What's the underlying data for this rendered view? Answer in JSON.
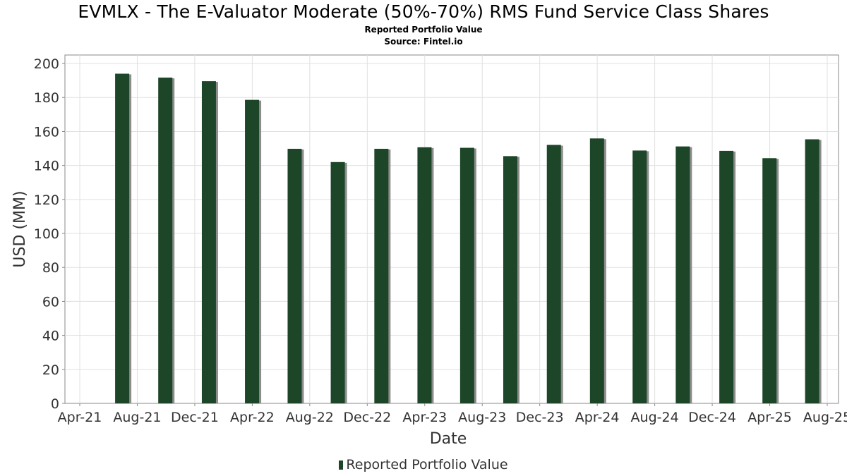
{
  "header": {
    "title": "EVMLX - The E-Valuator Moderate (50%-70%) RMS Fund Service Class Shares",
    "subtitle": "Reported Portfolio Value",
    "source": "Source: Fintel.io"
  },
  "legend": {
    "label": "Reported Portfolio Value"
  },
  "colors": {
    "bar": "#1d4628",
    "bar_shadow": "#8c8c8c",
    "grid": "#e0e0e0",
    "axis": "#888888"
  },
  "chart_data": {
    "type": "bar",
    "title": "EVMLX - The E-Valuator Moderate (50%-70%) RMS Fund Service Class Shares",
    "subtitle": "Reported Portfolio Value",
    "xlabel": "Date",
    "ylabel": "USD (MM)",
    "ylim": [
      0,
      205
    ],
    "yticks": [
      0,
      20,
      40,
      60,
      80,
      100,
      120,
      140,
      160,
      180,
      200
    ],
    "x_tick_labels": [
      "Apr-21",
      "Aug-21",
      "Dec-21",
      "Apr-22",
      "Aug-22",
      "Dec-22",
      "Apr-23",
      "Aug-23",
      "Dec-23",
      "Apr-24",
      "Aug-24",
      "Dec-24",
      "Apr-25",
      "Aug-25"
    ],
    "grid": true,
    "legend_position": "bottom",
    "series": [
      {
        "name": "Reported Portfolio Value",
        "points": [
          {
            "date": "2021-06-30",
            "value": 194.0
          },
          {
            "date": "2021-09-30",
            "value": 191.7
          },
          {
            "date": "2021-12-31",
            "value": 189.6
          },
          {
            "date": "2022-03-31",
            "value": 178.6
          },
          {
            "date": "2022-06-30",
            "value": 149.8
          },
          {
            "date": "2022-09-30",
            "value": 142.0
          },
          {
            "date": "2022-12-31",
            "value": 149.8
          },
          {
            "date": "2023-03-31",
            "value": 150.7
          },
          {
            "date": "2023-06-30",
            "value": 150.4
          },
          {
            "date": "2023-09-30",
            "value": 145.5
          },
          {
            "date": "2023-12-31",
            "value": 152.1
          },
          {
            "date": "2024-03-31",
            "value": 155.9
          },
          {
            "date": "2024-06-30",
            "value": 148.8
          },
          {
            "date": "2024-09-30",
            "value": 151.2
          },
          {
            "date": "2024-12-31",
            "value": 148.6
          },
          {
            "date": "2025-03-31",
            "value": 144.3
          },
          {
            "date": "2025-06-30",
            "value": 155.4
          }
        ]
      }
    ]
  }
}
